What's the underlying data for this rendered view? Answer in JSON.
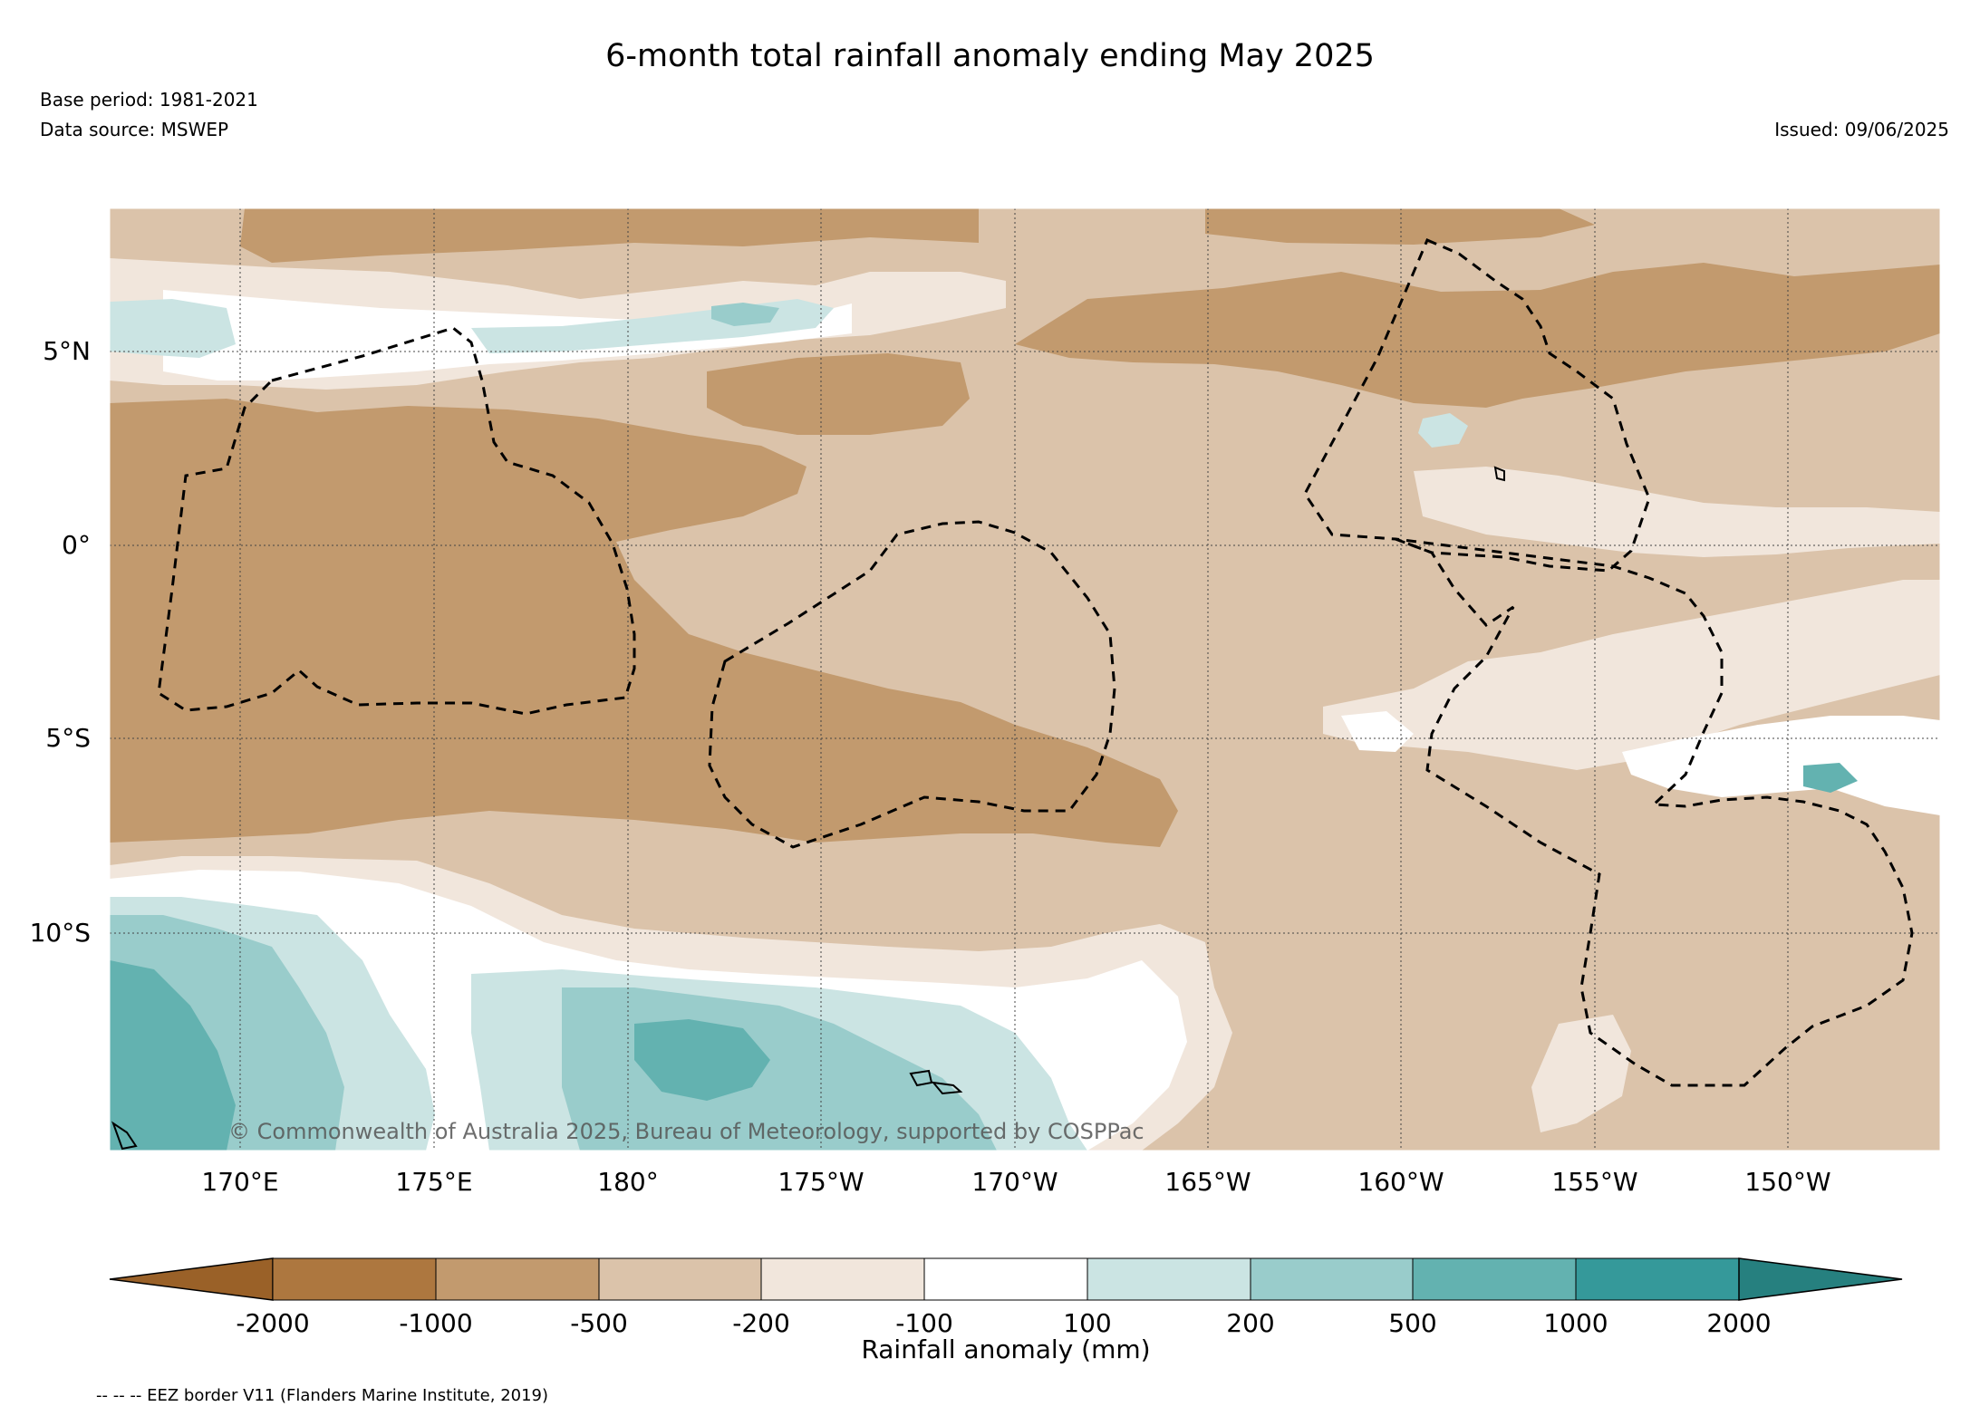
{
  "title": "6-month total rainfall anomaly ending May 2025",
  "base_period": "Base period: 1981-2021",
  "data_source": "Data source: MSWEP",
  "issued": "Issued: 09/06/2025",
  "copyright": "© Commonwealth of Australia 2025, Bureau of Meteorology, supported by COSPPac",
  "lat_labels": [
    "5°N",
    "0°",
    "5°S",
    "10°S"
  ],
  "lon_labels": [
    "170°E",
    "175°E",
    "180°",
    "175°W",
    "170°W",
    "165°W",
    "160°W",
    "155°W",
    "150°W"
  ],
  "colorbar": {
    "label": "Rainfall anomaly (mm)",
    "ticks": [
      "-2000",
      "-1000",
      "-500",
      "-200",
      "-100",
      "100",
      "200",
      "500",
      "1000",
      "2000"
    ],
    "colors": [
      "#9a6128",
      "#ad773f",
      "#c29a6e",
      "#dbc3aa",
      "#f1e6dc",
      "#ffffff",
      "#cbe4e3",
      "#99cccb",
      "#63b2b0",
      "#35999a",
      "#26807f"
    ]
  },
  "legend_note": "-- -- -- EEZ border V11 (Flanders Marine Institute, 2019)",
  "colors": {
    "dry_extreme": "#9a6128",
    "dry_strong": "#c29a6e",
    "dry_moderate": "#dbc3aa",
    "dry_slight": "#f1e6dc",
    "neutral": "#ffffff",
    "wet_slight": "#cbe4e3",
    "wet_moderate": "#99cccb",
    "wet_strong": "#63b2b0",
    "wet_extreme": "#35999a"
  }
}
